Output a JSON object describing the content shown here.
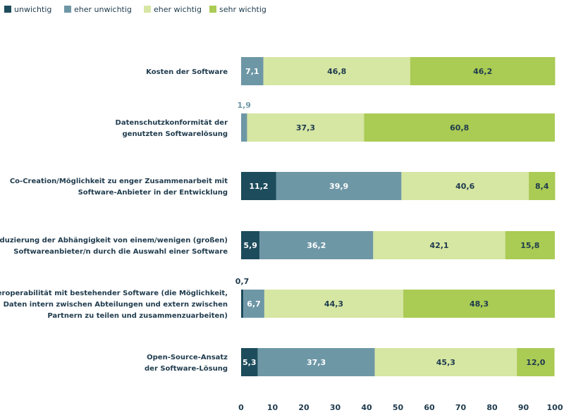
{
  "chart_data": {
    "type": "bar",
    "orientation": "horizontal",
    "stacked": true,
    "legend_position": "top-left",
    "grid": false,
    "xlim": [
      0,
      100
    ],
    "xticks": [
      0,
      10,
      20,
      30,
      40,
      50,
      60,
      70,
      80,
      90,
      100
    ],
    "categories": [
      [
        "Kosten der Software"
      ],
      [
        "Datenschutzkonformität der",
        "genutzten Softwarelösung"
      ],
      [
        "Co-Creation/Möglichkeit zu enger Zusammenarbeit mit",
        "Software-Anbieter in der Entwicklung"
      ],
      [
        "Reduzierung der Abhängigkeit von einem/wenigen (großen)",
        "Softwareanbieter/n durch die Auswahl einer Software"
      ],
      [
        "Interoperabilität mit bestehender Software (die Möglichkeit,",
        "Daten intern zwischen Abteilungen und extern zwischen",
        "Partnern zu teilen und zusammenzuarbeiten)"
      ],
      [
        "Open-Source-Ansatz",
        "der Software-Lösung"
      ]
    ],
    "series": [
      {
        "name": "unwichtig",
        "color": "#1d4c5c",
        "text_color": "#ffffff",
        "values": [
          0,
          0,
          11.2,
          5.9,
          0.7,
          5.3
        ],
        "labels": [
          "",
          "",
          "11,2",
          "5,9",
          "0,7",
          "5,3"
        ]
      },
      {
        "name": "eher unwichtig",
        "color": "#6e97a6",
        "text_color": "#ffffff",
        "values": [
          7.1,
          1.9,
          39.9,
          36.2,
          6.7,
          37.3
        ],
        "labels": [
          "7,1",
          "1,9",
          "39,9",
          "36,2",
          "6,7",
          "37,3"
        ]
      },
      {
        "name": "eher wichtig",
        "color": "#d6e6a3",
        "text_color": "#1f3b4d",
        "values": [
          46.8,
          37.3,
          40.6,
          42.1,
          44.3,
          45.3
        ],
        "labels": [
          "46,8",
          "37,3",
          "40,6",
          "42,1",
          "44,3",
          "45,3"
        ]
      },
      {
        "name": "sehr wichtig",
        "color": "#aacb54",
        "text_color": "#1f3b4d",
        "values": [
          46.2,
          60.8,
          8.4,
          15.8,
          48.3,
          12.0
        ],
        "labels": [
          "46,2",
          "60,8",
          "8,4",
          "15,8",
          "48,3",
          "12,0"
        ]
      }
    ]
  }
}
